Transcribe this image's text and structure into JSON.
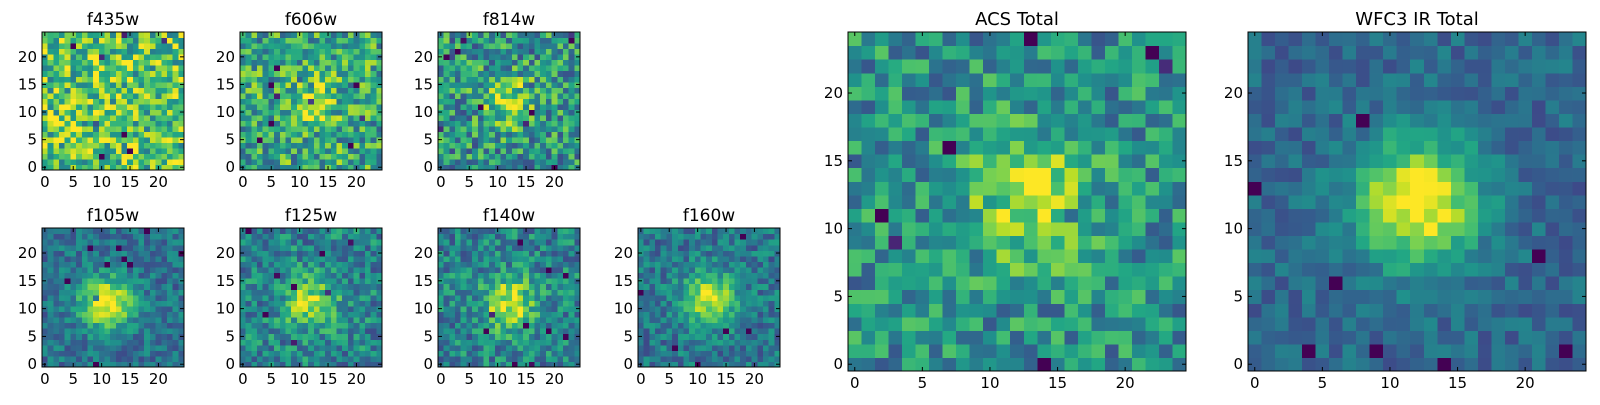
{
  "figure": {
    "background": "#ffffff",
    "colormap": "viridis"
  },
  "chart_data": [
    {
      "type": "heatmap",
      "title": "f435w",
      "grid_size": [
        25,
        25
      ],
      "xticks": [
        0,
        5,
        10,
        15,
        20
      ],
      "yticks": [
        0,
        5,
        10,
        15,
        20
      ],
      "xlim": [
        -0.5,
        24.5
      ],
      "ylim": [
        -0.5,
        24.5
      ],
      "source_center": null,
      "source_strength": 0.0,
      "noise": 0.32,
      "base": 0.72,
      "seed": 11
    },
    {
      "type": "heatmap",
      "title": "f606w",
      "grid_size": [
        25,
        25
      ],
      "xticks": [
        0,
        5,
        10,
        15,
        20
      ],
      "yticks": [
        0,
        5,
        10,
        15,
        20
      ],
      "xlim": [
        -0.5,
        24.5
      ],
      "ylim": [
        -0.5,
        24.5
      ],
      "source_center": [
        12,
        12
      ],
      "source_strength": 0.25,
      "noise": 0.3,
      "base": 0.6,
      "seed": 23
    },
    {
      "type": "heatmap",
      "title": "f814w",
      "grid_size": [
        25,
        25
      ],
      "xticks": [
        0,
        5,
        10,
        15,
        20
      ],
      "yticks": [
        0,
        5,
        10,
        15,
        20
      ],
      "xlim": [
        -0.5,
        24.5
      ],
      "ylim": [
        -0.5,
        24.5
      ],
      "source_center": [
        12,
        12
      ],
      "source_strength": 0.35,
      "noise": 0.3,
      "base": 0.52,
      "seed": 37
    },
    {
      "type": "heatmap",
      "title": "f105w",
      "grid_size": [
        25,
        25
      ],
      "xticks": [
        0,
        5,
        10,
        15,
        20
      ],
      "yticks": [
        0,
        5,
        10,
        15,
        20
      ],
      "xlim": [
        -0.5,
        24.5
      ],
      "ylim": [
        -0.5,
        24.5
      ],
      "source_center": [
        11,
        11
      ],
      "source_strength": 0.65,
      "noise": 0.16,
      "base": 0.38,
      "seed": 41
    },
    {
      "type": "heatmap",
      "title": "f125w",
      "grid_size": [
        25,
        25
      ],
      "xticks": [
        0,
        5,
        10,
        15,
        20
      ],
      "yticks": [
        0,
        5,
        10,
        15,
        20
      ],
      "xlim": [
        -0.5,
        24.5
      ],
      "ylim": [
        -0.5,
        24.5
      ],
      "source_center": [
        12,
        11
      ],
      "source_strength": 0.45,
      "noise": 0.22,
      "base": 0.45,
      "seed": 53
    },
    {
      "type": "heatmap",
      "title": "f140w",
      "grid_size": [
        25,
        25
      ],
      "xticks": [
        0,
        5,
        10,
        15,
        20
      ],
      "yticks": [
        0,
        5,
        10,
        15,
        20
      ],
      "xlim": [
        -0.5,
        24.5
      ],
      "ylim": [
        -0.5,
        24.5
      ],
      "source_center": [
        12,
        11
      ],
      "source_strength": 0.5,
      "noise": 0.22,
      "base": 0.45,
      "seed": 67
    },
    {
      "type": "heatmap",
      "title": "f160w",
      "grid_size": [
        25,
        25
      ],
      "xticks": [
        0,
        5,
        10,
        15,
        20
      ],
      "yticks": [
        0,
        5,
        10,
        15,
        20
      ],
      "xlim": [
        -0.5,
        24.5
      ],
      "ylim": [
        -0.5,
        24.5
      ],
      "source_center": [
        12,
        12
      ],
      "source_strength": 0.55,
      "noise": 0.18,
      "base": 0.4,
      "seed": 79
    },
    {
      "type": "heatmap",
      "title": "ACS Total",
      "grid_size": [
        25,
        25
      ],
      "xticks": [
        0,
        5,
        10,
        15,
        20
      ],
      "yticks": [
        0,
        5,
        10,
        15,
        20
      ],
      "xlim": [
        -0.5,
        24.5
      ],
      "ylim": [
        -0.5,
        24.5
      ],
      "source_center": [
        13,
        12
      ],
      "source_strength": 0.4,
      "noise": 0.24,
      "base": 0.5,
      "seed": 97
    },
    {
      "type": "heatmap",
      "title": "WFC3 IR Total",
      "grid_size": [
        25,
        25
      ],
      "xticks": [
        0,
        5,
        10,
        15,
        20
      ],
      "yticks": [
        0,
        5,
        10,
        15,
        20
      ],
      "xlim": [
        -0.5,
        24.5
      ],
      "ylim": [
        -0.5,
        24.5
      ],
      "source_center": [
        12,
        12
      ],
      "source_strength": 0.7,
      "noise": 0.12,
      "base": 0.34,
      "seed": 131
    }
  ]
}
